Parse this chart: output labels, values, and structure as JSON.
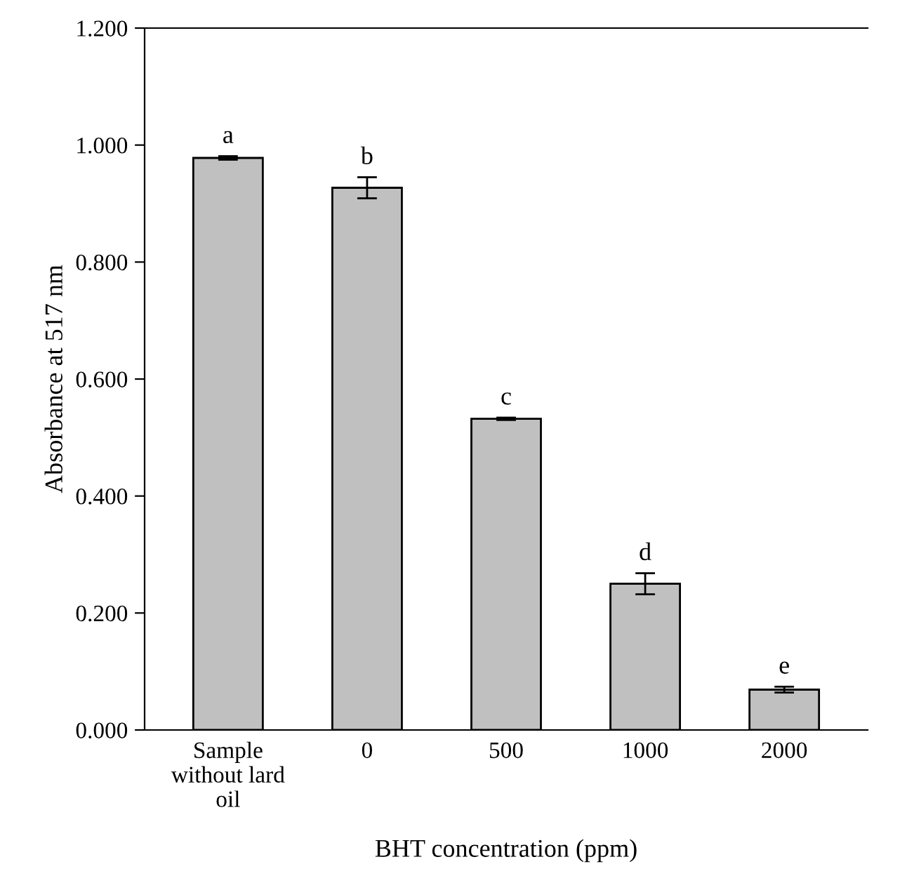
{
  "chart_data": {
    "type": "bar",
    "xlabel": "BHT concentration (ppm)",
    "ylabel": "Absorbance at 517 nm",
    "categories": [
      "Sample\nwithout lard\noil",
      "0",
      "500",
      "1000",
      "2000"
    ],
    "values": [
      0.978,
      0.927,
      0.532,
      0.25,
      0.069
    ],
    "errors": [
      0.003,
      0.018,
      0.002,
      0.018,
      0.005
    ],
    "color": "#c0c0c0",
    "ylim": [
      0,
      1.2
    ],
    "yticks": [
      {
        "value": 0,
        "label": "0.000"
      },
      {
        "value": 0.2,
        "label": "0.200"
      },
      {
        "value": 0.4,
        "label": "0.400"
      },
      {
        "value": 0.6,
        "label": "0.600"
      },
      {
        "value": 0.8,
        "label": "0.800"
      },
      {
        "value": 1.0,
        "label": "1.000"
      },
      {
        "value": 1.2,
        "label": "1.200"
      }
    ],
    "annotations": [
      {
        "text": "a",
        "x": "Sample\nwithout lard\noil",
        "y": 0.981
      },
      {
        "text": "b",
        "x": "0",
        "y": 0.945
      },
      {
        "text": "c",
        "x": "500",
        "y": 0.534
      },
      {
        "text": "d",
        "x": "1000",
        "y": 0.268
      },
      {
        "text": "e",
        "x": "2000",
        "y": 0.074
      }
    ],
    "grid": false,
    "legend": false
  }
}
